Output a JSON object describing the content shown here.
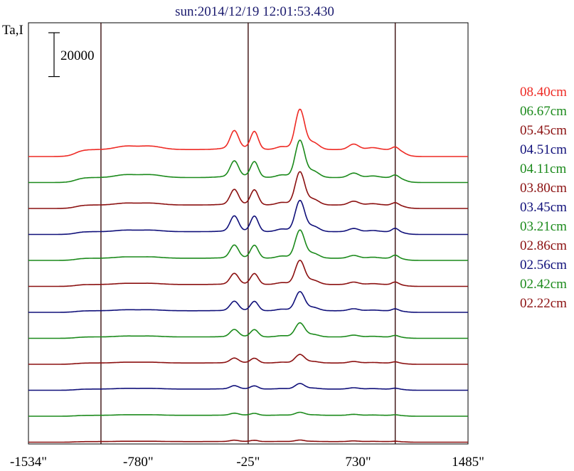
{
  "chart_data": {
    "type": "line",
    "title": "sun:2014/12/19 12:01:53.430",
    "ylabel": "Ta,I",
    "scale_bar_label": "20000",
    "scale_bar_value": 20000,
    "x_ticks": [
      -1534,
      -780,
      -25,
      730,
      1485
    ],
    "x_tick_labels": [
      "-1534\"",
      "-780\"",
      "-25\"",
      "730\"",
      "1485\""
    ],
    "xlim": [
      -1534,
      1485
    ],
    "vertical_markers": [
      -1036,
      -25,
      985
    ],
    "vertical_marker_color": "#3a0d0d",
    "colors": {
      "red": "#ee2a24",
      "green": "#1b8a1b",
      "maroon": "#8b1010",
      "blue": "#10107a",
      "title": "#1a1a6e"
    },
    "series": [
      {
        "name": "08.40cm",
        "color": "#ee2a24",
        "baseline": 4000,
        "profile": {
          "mid": 9000,
          "plateau": 7000,
          "pair": 17000,
          "peak": 40000,
          "side": 5500,
          "edge": 3000
        }
      },
      {
        "name": "06.67cm",
        "color": "#1b8a1b",
        "baseline": 4000,
        "profile": {
          "mid": 7500,
          "plateau": 5000,
          "pair": 15000,
          "peak": 37000,
          "side": 4500,
          "edge": 2800
        }
      },
      {
        "name": "05.45cm",
        "color": "#8b1010",
        "baseline": 4000,
        "profile": {
          "mid": 5000,
          "plateau": 3500,
          "pair": 14500,
          "peak": 33000,
          "side": 3800,
          "edge": 2500
        }
      },
      {
        "name": "04.51cm",
        "color": "#10107a",
        "baseline": 4000,
        "profile": {
          "mid": 4000,
          "plateau": 2800,
          "pair": 15000,
          "peak": 31000,
          "side": 3200,
          "edge": 3500
        }
      },
      {
        "name": "04.11cm",
        "color": "#1b8a1b",
        "baseline": 4000,
        "profile": {
          "mid": 3500,
          "plateau": 2200,
          "pair": 12500,
          "peak": 28000,
          "side": 2800,
          "edge": 3200
        }
      },
      {
        "name": "03.80cm",
        "color": "#8b1010",
        "baseline": 4000,
        "profile": {
          "mid": 3000,
          "plateau": 1900,
          "pair": 10500,
          "peak": 24000,
          "side": 2400,
          "edge": 2600
        }
      },
      {
        "name": "03.45cm",
        "color": "#10107a",
        "baseline": 4000,
        "profile": {
          "mid": 2600,
          "plateau": 1600,
          "pair": 9000,
          "peak": 19000,
          "side": 2000,
          "edge": 2000
        }
      },
      {
        "name": "03.21cm",
        "color": "#1b8a1b",
        "baseline": 4000,
        "profile": {
          "mid": 2300,
          "plateau": 1400,
          "pair": 7000,
          "peak": 14000,
          "side": 1800,
          "edge": 1600
        }
      },
      {
        "name": "02.86cm",
        "color": "#8b1010",
        "baseline": 4000,
        "profile": {
          "mid": 2000,
          "plateau": 1300,
          "pair": 4500,
          "peak": 8500,
          "side": 1500,
          "edge": 1200
        }
      },
      {
        "name": "02.56cm",
        "color": "#10107a",
        "baseline": 4000,
        "profile": {
          "mid": 1800,
          "plateau": 1200,
          "pair": 3000,
          "peak": 5500,
          "side": 1300,
          "edge": 900
        }
      },
      {
        "name": "02.42cm",
        "color": "#1b8a1b",
        "baseline": 4000,
        "profile": {
          "mid": 1500,
          "plateau": 900,
          "pair": 1800,
          "peak": 3000,
          "side": 1000,
          "edge": 600
        }
      },
      {
        "name": "02.22cm",
        "color": "#8b1010",
        "baseline": 4000,
        "profile": {
          "mid": 900,
          "plateau": 600,
          "pair": 1200,
          "peak": 1500,
          "side": 700,
          "edge": 400
        }
      }
    ]
  }
}
